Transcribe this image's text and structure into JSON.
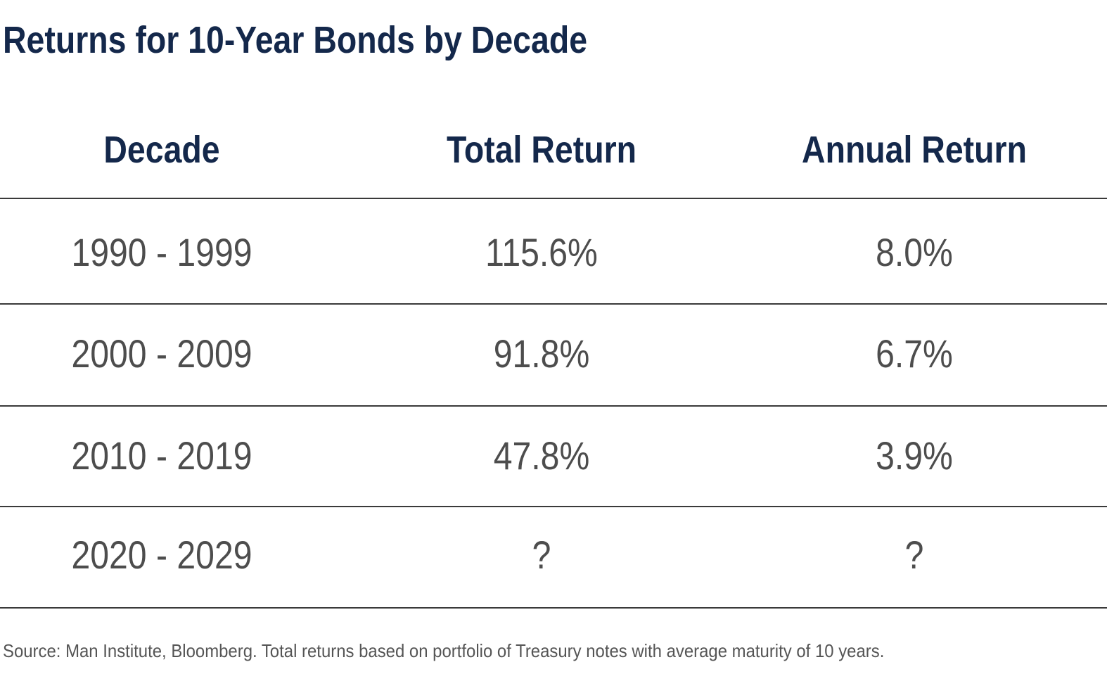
{
  "chart_data": {
    "type": "table",
    "title": "Returns for 10-Year Bonds by Decade",
    "columns": [
      "Decade",
      "Total Return",
      "Annual Return"
    ],
    "rows": [
      [
        "1990 - 1999",
        "115.6%",
        "8.0%"
      ],
      [
        "2000 - 2009",
        "91.8%",
        "6.7%"
      ],
      [
        "2010 - 2019",
        "47.8%",
        "3.9%"
      ],
      [
        "2020 - 2029",
        "?",
        "?"
      ]
    ],
    "footnote": "Source: Man Institute, Bloomberg. Total returns based on portfolio of Treasury notes with average maturity of 10 years."
  },
  "colors": {
    "title": "#14284b",
    "header": "#14284b",
    "cell_text": "#4d4d4d",
    "rule": "#3a3a3a"
  }
}
